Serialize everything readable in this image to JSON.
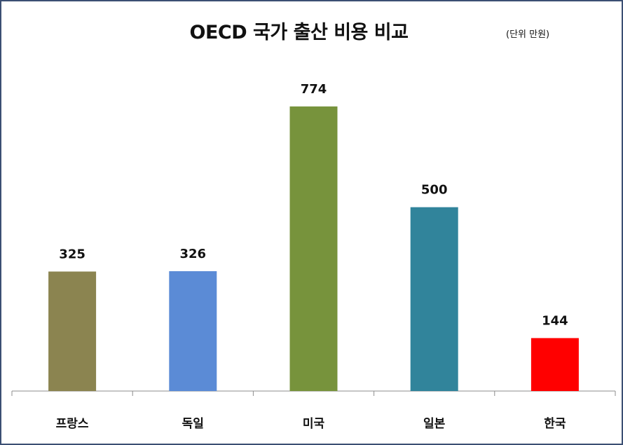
{
  "chart_data": {
    "type": "bar",
    "title": "OECD 국가 출산 비용 비교",
    "unit_note": "(단위 만원)",
    "categories": [
      "프랑스",
      "독일",
      "미국",
      "일본",
      "한국"
    ],
    "values": [
      325,
      326,
      774,
      500,
      144
    ],
    "colors": [
      "#8b8450",
      "#5b8bd6",
      "#77933c",
      "#31849b",
      "#ff0000"
    ],
    "ylim": [
      0,
      850
    ],
    "grid": false,
    "legend": "none",
    "data_labels": true
  }
}
